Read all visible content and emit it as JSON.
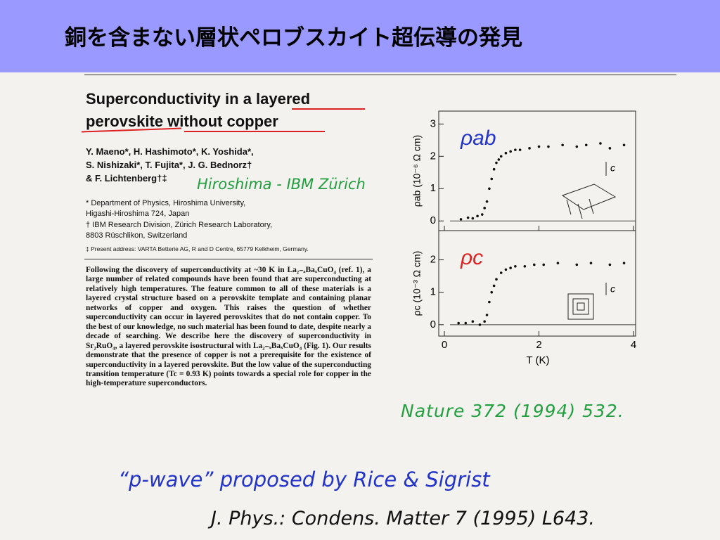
{
  "slide": {
    "title": "銅を含まない層状ペロブスカイト超伝導の発見"
  },
  "paper": {
    "title_lines": [
      "Superconductivity in a layered",
      "perovskite without copper"
    ],
    "author_lines": [
      "Y. Maeno*, H. Hashimoto*, K. Yoshida*,",
      "S. Nishizaki*, T. Fujita*, J. G. Bednorz†",
      "& F. Lichtenberg†‡"
    ],
    "affiliation_lines": [
      "* Department of Physics, Hiroshima University,",
      "Higashi-Hiroshima 724, Japan",
      "† IBM Research Division, Zürich Research Laboratory,",
      "8803 Rüschlikon, Switzerland",
      "‡ Present address: VARTA Betterie AG, R and D Centre, 65779 Kelkheim, Germany."
    ],
    "abstract": "Following the discovery of superconductivity at ~30 K in La₂₋ₓBaₓCuO₄ (ref. 1), a large number of related compounds have been found that are superconducting at relatively high temperatures. The feature common to all of these materials is a layered crystal structure based on a perovskite template and containing planar networks of copper and oxygen. This raises the question of whether superconductivity can occur in layered perovskites that do not contain copper. To the best of our knowledge, no such material has been found to date, despite nearly a decade of searching. We describe here the discovery of superconductivity in Sr₂RuO₄, a layered perovskite isostructural with La₂₋ₓBaₓCuO₄ (Fig. 1). Our results demonstrate that the presence of copper is not a prerequisite for the existence of superconductivity in a layered perovskite. But the low value of the superconducting transition temperature (Tc = 0.93 K) points towards a special role for copper in the high-temperature superconductors."
  },
  "annotations": {
    "institutions": "Hiroshima - IBM Zürich",
    "reference": "Nature 372 (1994) 532.",
    "pwave": "“p-wave” proposed by  Rice & Sigrist",
    "jphys": "J. Phys.: Condens. Matter 7 (1995) L643."
  },
  "figure": {
    "xlabel": "T (K)",
    "xlim": [
      0,
      4.1
    ],
    "xticks": [
      0,
      2,
      4
    ],
    "panels": [
      {
        "label": "ρab",
        "ylabel": "ρab (10⁻⁶ Ω cm)",
        "axis_note": "c",
        "ylim": [
          -0.3,
          3.4
        ],
        "yticks": [
          0,
          1,
          2,
          3
        ],
        "x": [
          0.35,
          0.5,
          0.6,
          0.7,
          0.8,
          0.85,
          0.9,
          0.95,
          1.0,
          1.05,
          1.1,
          1.15,
          1.2,
          1.3,
          1.4,
          1.5,
          1.6,
          1.8,
          2.0,
          2.2,
          2.5,
          2.8,
          3.0,
          3.3,
          3.5,
          3.8
        ],
        "values": [
          0.05,
          0.1,
          0.08,
          0.15,
          0.2,
          0.4,
          0.6,
          1.0,
          1.3,
          1.6,
          1.8,
          1.9,
          2.0,
          2.1,
          2.15,
          2.2,
          2.2,
          2.25,
          2.3,
          2.3,
          2.35,
          2.3,
          2.35,
          2.4,
          2.25,
          2.35
        ]
      },
      {
        "label": "ρc",
        "ylabel": "ρc (10⁻³ Ω cm)",
        "axis_note": "c",
        "ylim": [
          -0.35,
          2.9
        ],
        "yticks": [
          0,
          1,
          2
        ],
        "x": [
          0.3,
          0.45,
          0.6,
          0.75,
          0.85,
          0.9,
          0.95,
          1.0,
          1.05,
          1.1,
          1.2,
          1.3,
          1.4,
          1.5,
          1.7,
          1.9,
          2.1,
          2.4,
          2.8,
          3.1,
          3.5,
          3.8
        ],
        "values": [
          0.05,
          0.05,
          0.1,
          0.0,
          0.1,
          0.3,
          0.7,
          1.0,
          1.2,
          1.4,
          1.6,
          1.7,
          1.75,
          1.8,
          1.8,
          1.85,
          1.85,
          1.9,
          1.85,
          1.9,
          1.85,
          1.9
        ]
      }
    ]
  }
}
